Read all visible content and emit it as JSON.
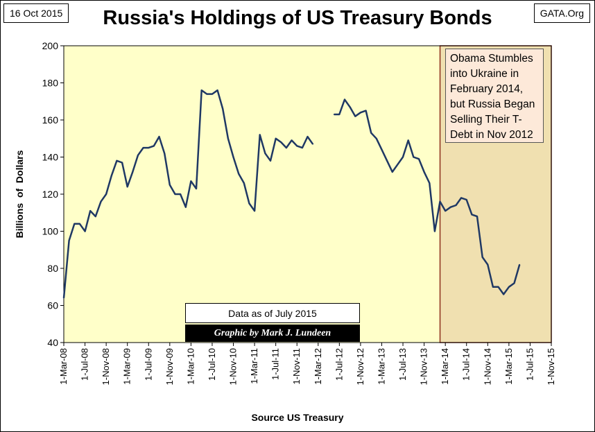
{
  "header": {
    "date": "16 Oct 2015",
    "source": "GATA.Org"
  },
  "annotation": {
    "text": "Obama Stumbles into Ukraine in February 2014, but Russia Began Selling Their T-Debt in Nov 2012"
  },
  "data_note": "Data as of July 2015",
  "credit": "Graphic by Mark J. Lundeen",
  "colors": {
    "plot_bg": "#ffffc9",
    "shaded_bg": "#f0e0b0",
    "shade_border": "#8b2e1a",
    "line": "#1f3864",
    "annotation_bg": "#fde9d9"
  },
  "chart_data": {
    "type": "line",
    "title": "Russia's Holdings of US Treasury Bonds",
    "xlabel": "Source US Treasury",
    "ylabel": "Billions  of  Dollars",
    "ylim": [
      40,
      200
    ],
    "yticks": [
      40,
      60,
      80,
      100,
      120,
      140,
      160,
      180,
      200
    ],
    "xticks": [
      "1-Mar-08",
      "1-Jul-08",
      "1-Nov-08",
      "1-Mar-09",
      "1-Jul-09",
      "1-Nov-09",
      "1-Mar-10",
      "1-Jul-10",
      "1-Nov-10",
      "1-Mar-11",
      "1-Jul-11",
      "1-Nov-11",
      "1-Mar-12",
      "1-Jul-12",
      "1-Nov-12",
      "1-Mar-13",
      "1-Jul-13",
      "1-Nov-13",
      "1-Mar-14",
      "1-Jul-14",
      "1-Nov-14",
      "1-Mar-15",
      "1-Jul-15",
      "1-Nov-15"
    ],
    "shaded_region": [
      "2014-02",
      "2015-11"
    ],
    "grid": false,
    "series": [
      {
        "segments": [
          [
            [
              "2008-03",
              64
            ],
            [
              "2008-04",
              95
            ],
            [
              "2008-05",
              104
            ],
            [
              "2008-06",
              104
            ],
            [
              "2008-07",
              100
            ],
            [
              "2008-08",
              111
            ],
            [
              "2008-09",
              108
            ],
            [
              "2008-10",
              116
            ],
            [
              "2008-11",
              120
            ],
            [
              "2008-12",
              130
            ],
            [
              "2009-01",
              138
            ],
            [
              "2009-02",
              137
            ],
            [
              "2009-03",
              124
            ],
            [
              "2009-04",
              132
            ],
            [
              "2009-05",
              141
            ],
            [
              "2009-06",
              145
            ],
            [
              "2009-07",
              145
            ],
            [
              "2009-08",
              146
            ],
            [
              "2009-09",
              151
            ],
            [
              "2009-10",
              142
            ],
            [
              "2009-11",
              125
            ],
            [
              "2009-12",
              120
            ],
            [
              "2010-01",
              120
            ],
            [
              "2010-02",
              113
            ],
            [
              "2010-03",
              127
            ],
            [
              "2010-04",
              123
            ],
            [
              "2010-05",
              176
            ],
            [
              "2010-06",
              174
            ],
            [
              "2010-07",
              174
            ],
            [
              "2010-08",
              176
            ],
            [
              "2010-09",
              166
            ],
            [
              "2010-10",
              150
            ],
            [
              "2010-11",
              140
            ],
            [
              "2010-12",
              131
            ],
            [
              "2011-01",
              126
            ],
            [
              "2011-02",
              115
            ],
            [
              "2011-03",
              111
            ],
            [
              "2011-04",
              152
            ],
            [
              "2011-05",
              142
            ],
            [
              "2011-06",
              138
            ],
            [
              "2011-07",
              150
            ],
            [
              "2011-08",
              148
            ],
            [
              "2011-09",
              145
            ],
            [
              "2011-10",
              149
            ],
            [
              "2011-11",
              146
            ],
            [
              "2011-12",
              145
            ],
            [
              "2012-01",
              151
            ],
            [
              "2012-02",
              147
            ]
          ],
          [
            [
              "2012-06",
              163
            ],
            [
              "2012-07",
              163
            ],
            [
              "2012-08",
              171
            ],
            [
              "2012-09",
              167
            ],
            [
              "2012-10",
              162
            ],
            [
              "2012-11",
              164
            ],
            [
              "2012-12",
              165
            ],
            [
              "2013-01",
              153
            ],
            [
              "2013-02",
              150
            ],
            [
              "2013-03",
              144
            ],
            [
              "2013-04",
              138
            ],
            [
              "2013-05",
              132
            ],
            [
              "2013-06",
              136
            ],
            [
              "2013-07",
              140
            ],
            [
              "2013-08",
              149
            ],
            [
              "2013-09",
              140
            ],
            [
              "2013-10",
              139
            ],
            [
              "2013-11",
              132
            ],
            [
              "2013-12",
              126
            ],
            [
              "2014-01",
              100
            ],
            [
              "2014-02",
              116
            ],
            [
              "2014-03",
              111
            ],
            [
              "2014-04",
              113
            ],
            [
              "2014-05",
              114
            ],
            [
              "2014-06",
              118
            ],
            [
              "2014-07",
              117
            ],
            [
              "2014-08",
              109
            ],
            [
              "2014-09",
              108
            ],
            [
              "2014-10",
              86
            ],
            [
              "2014-11",
              82
            ],
            [
              "2014-12",
              70
            ],
            [
              "2015-01",
              70
            ],
            [
              "2015-02",
              66
            ],
            [
              "2015-03",
              70
            ],
            [
              "2015-04",
              72
            ],
            [
              "2015-05",
              82
            ]
          ]
        ]
      }
    ]
  }
}
